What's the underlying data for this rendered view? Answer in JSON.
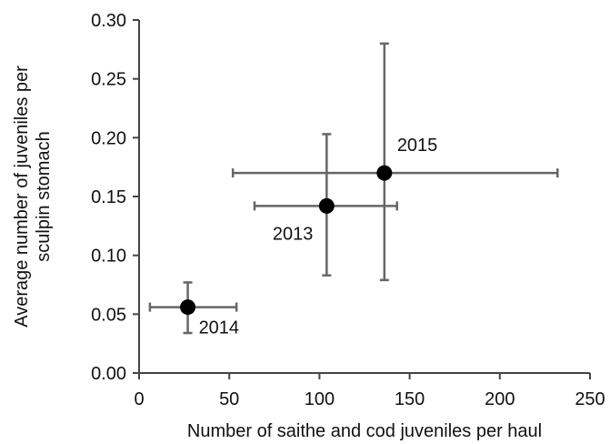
{
  "chart_data": {
    "type": "scatter",
    "title": "",
    "xlabel": "Number of saithe and cod juveniles per haul",
    "ylabel": "Average number of juveniles per sculpin stomach",
    "ylabel_lines": [
      "Average number of juveniles per",
      "sculpin stomach"
    ],
    "xlim": [
      0,
      250
    ],
    "ylim": [
      0,
      0.3
    ],
    "x_ticks": [
      "0",
      "50",
      "100",
      "150",
      "200",
      "250"
    ],
    "y_ticks": [
      "0.00",
      "0.05",
      "0.10",
      "0.15",
      "0.20",
      "0.25",
      "0.30"
    ],
    "grid": false,
    "legend": "none",
    "colors": {
      "point": "#000000",
      "error_bar": "#666666",
      "axis": "#444444"
    },
    "points": [
      {
        "label": "2013",
        "x": 104,
        "y": 0.142,
        "x_err": [
          64,
          143
        ],
        "y_err": [
          0.083,
          0.203
        ],
        "label_position": "bottom-left"
      },
      {
        "label": "2014",
        "x": 27,
        "y": 0.056,
        "x_err": [
          6,
          54
        ],
        "y_err": [
          0.034,
          0.077
        ],
        "label_position": "bottom-right"
      },
      {
        "label": "2015",
        "x": 136,
        "y": 0.17,
        "x_err": [
          52,
          232
        ],
        "y_err": [
          0.079,
          0.28
        ],
        "label_position": "top-right"
      }
    ]
  }
}
